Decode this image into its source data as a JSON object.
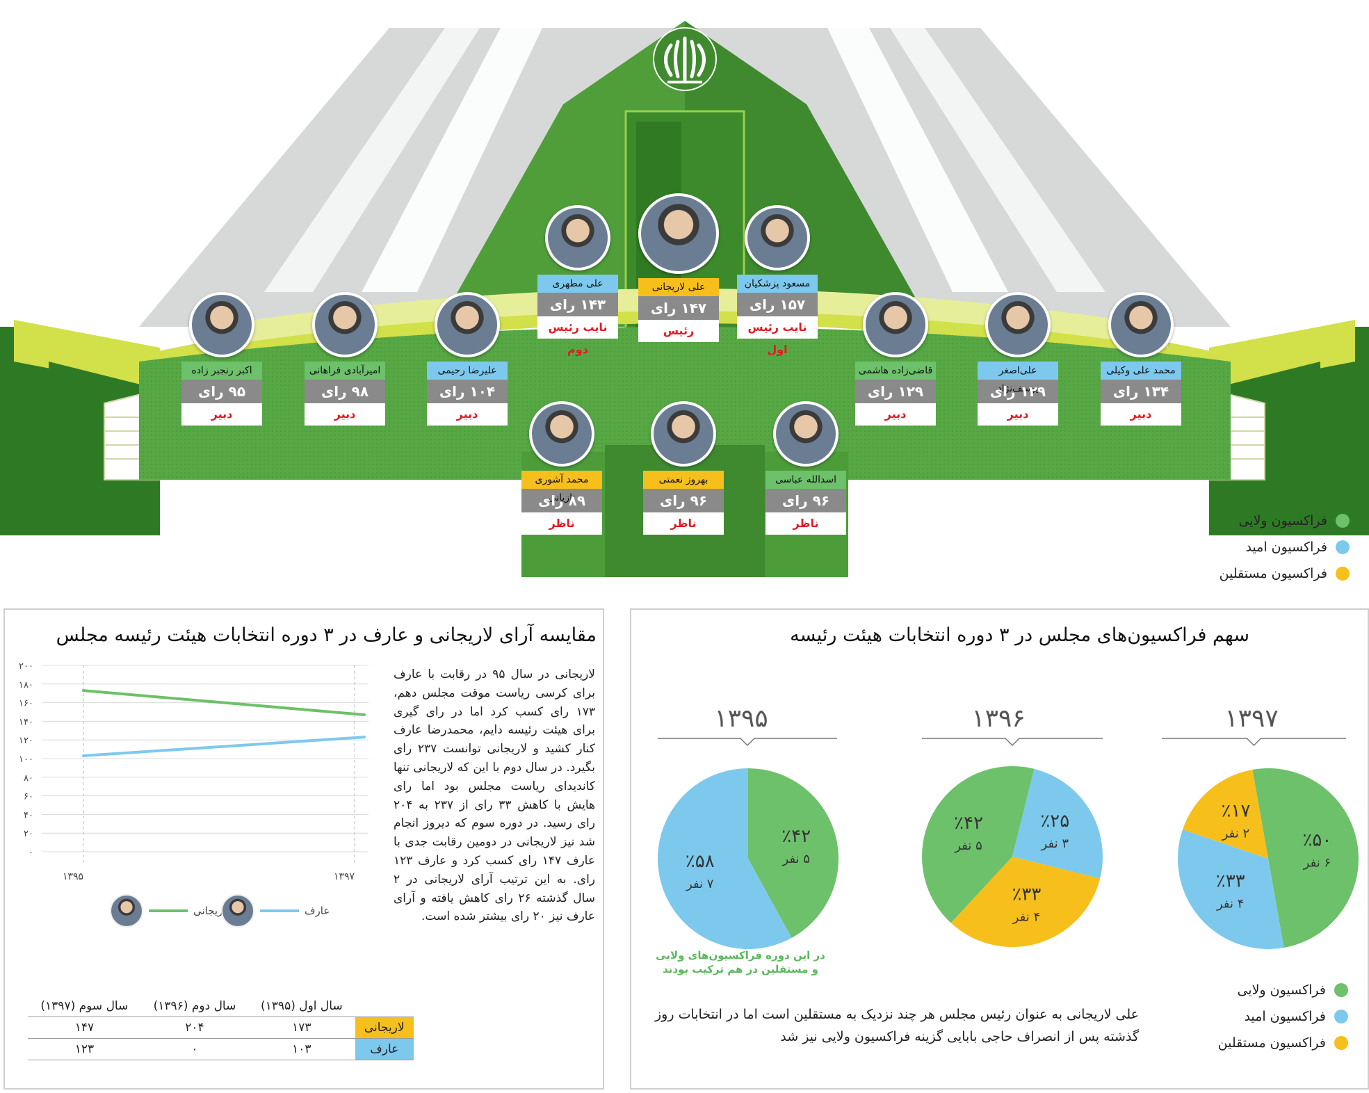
{
  "colors": {
    "velayi": "#6cc16a",
    "omid": "#7dc9ee",
    "mostaghel": "#f6bf1c",
    "red_role": "#e01b24",
    "vote_box": "#8a8a8a"
  },
  "emblem": "iran-emblem-icon",
  "members": [
    {
      "name": "علی لاریجانی",
      "votes": "۱۴۷ رای",
      "role": "رئیس",
      "faction": "mostaghel"
    },
    {
      "name": "مسعود پزشکیان",
      "votes": "۱۵۷ رای",
      "role": "نایب رئیس اول",
      "faction": "omid"
    },
    {
      "name": "علی مطهری",
      "votes": "۱۴۳ رای",
      "role": "نایب رئیس دوم",
      "faction": "omid"
    },
    {
      "name": "اکبر رنجبر زاده",
      "votes": "۹۵ رای",
      "role": "دبیر",
      "faction": "velayi"
    },
    {
      "name": "امیرآبادی فراهانی",
      "votes": "۹۸ رای",
      "role": "دبیر",
      "faction": "velayi"
    },
    {
      "name": "علیرضا رحیمی",
      "votes": "۱۰۴ رای",
      "role": "دبیر",
      "faction": "omid"
    },
    {
      "name": "قاضی‌زاده هاشمی",
      "votes": "۱۲۹ رای",
      "role": "دبیر",
      "faction": "velayi"
    },
    {
      "name": "علی‌اصغر یوسف‌نژاد",
      "votes": "۱۲۹ رای",
      "role": "دبیر",
      "faction": "omid"
    },
    {
      "name": "محمد علی وکیلی",
      "votes": "۱۳۴ رای",
      "role": "دبیر",
      "faction": "omid"
    },
    {
      "name": "محمد آشوری تازیانی",
      "votes": "۸۹ رای",
      "role": "ناظر",
      "faction": "mostaghel"
    },
    {
      "name": "بهروز نعمتی",
      "votes": "۹۶ رای",
      "role": "ناظر",
      "faction": "mostaghel"
    },
    {
      "name": "اسدالله عباسی",
      "votes": "۹۶ رای",
      "role": "ناظر",
      "faction": "velayi"
    }
  ],
  "legend": [
    "فراکسیون ولایی",
    "فراکسیون امید",
    "فراکسیون مستقلین"
  ],
  "left_panel": {
    "title": "مقایسه آرای لاریجانی و عارف در ۳ دوره انتخابات هیئت رئیسه مجلس",
    "paragraph": "لاریجانی در سال ۹۵ در رقابت با عارف برای کرسی ریاست موقت مجلس دهم، ۱۷۳ رای کسب کرد اما در رای گیری برای هیئت رئیسه دایم، محمدرضا عارف کنار کشید و لاریجانی توانست ۲۳۷ رای بگیرد. در سال دوم با این که لاریجانی تنها کاندیدای ریاست مجلس بود اما رای هایش با کاهش ۳۳ رای از ۲۳۷ به ۲۰۴ رای رسید. در دوره سوم که دیروز انجام شد نیز لاریجانی در دومین رقابت جدی با عارف ۱۴۷ رای کسب کرد و عارف ۱۲۳ رای. به این ترتیب آرای لاریجانی در ۲ سال گذشته ۲۶ رای کاهش یافته و آرای عارف نیز ۲۰ رای بیشتر شده است.",
    "legend_larijani": "لاریجانی",
    "legend_aref": "عارف",
    "table": {
      "headers": [
        "سال اول (۱۳۹۵)",
        "سال دوم (۱۳۹۶)",
        "سال سوم (۱۳۹۷)"
      ],
      "rows": [
        {
          "label": "لاریجانی",
          "values": [
            "۱۷۳",
            "۲۰۴",
            "۱۴۷"
          ]
        },
        {
          "label": "عارف",
          "values": [
            "۱۰۳",
            "۰",
            "۱۲۳"
          ]
        }
      ]
    }
  },
  "right_panel": {
    "title": "سهم فراکسیون‌های مجلس در ۳ دوره انتخابات هیئت رئیسه",
    "caption": "در این دوره فراکسیون‌های ولایی و مستقلین در هم ترکیب بودند",
    "note": "علی لاریجانی به عنوان رئیس مجلس هر چند نزدیک به مستقلین است اما در انتخابات روز گذشته پس از انصراف حاجی بابایی گزینه فراکسیون ولایی نیز شد",
    "legend": [
      "فراکسیون ولایی",
      "فراکسیون امید",
      "فراکسیون مستقلین"
    ]
  },
  "chart_data": [
    {
      "type": "line",
      "x": [
        "۱۳۹۵",
        "۱۳۹۷"
      ],
      "ylim": [
        0,
        200
      ],
      "yticks": [
        "۰",
        "۲۰",
        "۴۰",
        "۶۰",
        "۸۰",
        "۱۰۰",
        "۱۲۰",
        "۱۴۰",
        "۱۶۰",
        "۱۸۰",
        "۲۰۰"
      ],
      "ytick_values": [
        0,
        20,
        40,
        60,
        80,
        100,
        120,
        140,
        160,
        180,
        200
      ],
      "series": [
        {
          "name": "لاریجانی",
          "values": [
            173,
            147
          ],
          "color": "#6cc16a"
        },
        {
          "name": "عارف",
          "values": [
            103,
            123
          ],
          "color": "#7dc9ee"
        }
      ],
      "grid": true
    },
    {
      "type": "pie",
      "title": "۱۳۹۵",
      "slices": [
        {
          "value": 42,
          "label": "٪۴۲",
          "count": "۵ نفر",
          "color": "#6cc16a"
        },
        {
          "value": 58,
          "label": "٪۵۸",
          "count": "۷ نفر",
          "color": "#7dc9ee"
        }
      ]
    },
    {
      "type": "pie",
      "title": "۱۳۹۶",
      "slices": [
        {
          "value": 33,
          "label": "٪۳۳",
          "count": "۴ نفر",
          "color": "#f6bf1c"
        },
        {
          "value": 42,
          "label": "٪۴۲",
          "count": "۵ نفر",
          "color": "#6cc16a"
        },
        {
          "value": 25,
          "label": "٪۲۵",
          "count": "۳ نفر",
          "color": "#7dc9ee"
        }
      ]
    },
    {
      "type": "pie",
      "title": "۱۳۹۷",
      "slices": [
        {
          "value": 50,
          "label": "٪۵۰",
          "count": "۶ نفر",
          "color": "#6cc16a"
        },
        {
          "value": 33,
          "label": "٪۳۳",
          "count": "۴ نفر",
          "color": "#7dc9ee"
        },
        {
          "value": 17,
          "label": "٪۱۷",
          "count": "۲ نفر",
          "color": "#f6bf1c"
        }
      ]
    }
  ]
}
